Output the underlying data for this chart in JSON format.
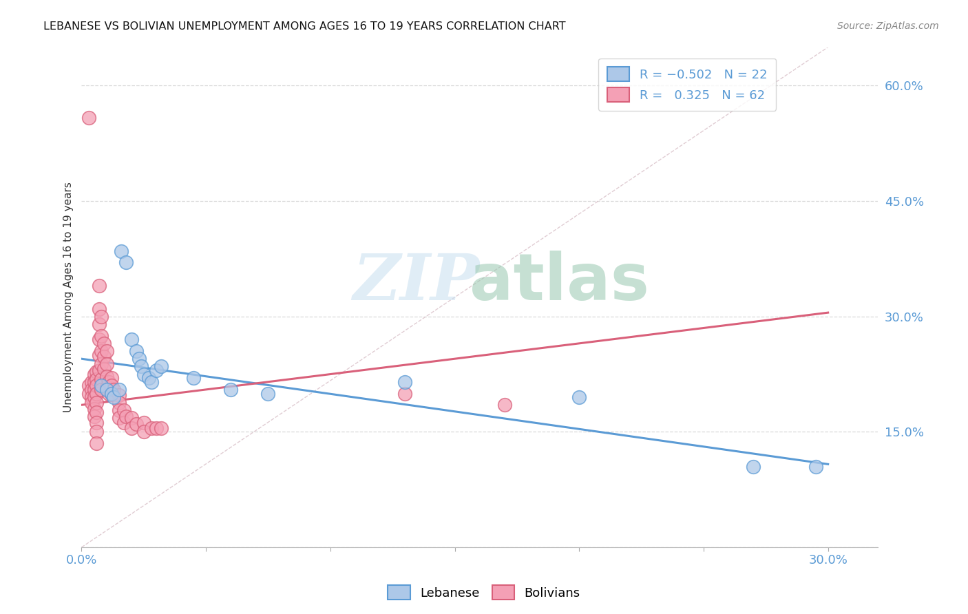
{
  "title": "LEBANESE VS BOLIVIAN UNEMPLOYMENT AMONG AGES 16 TO 19 YEARS CORRELATION CHART",
  "source": "Source: ZipAtlas.com",
  "ylabel": "Unemployment Among Ages 16 to 19 years",
  "xlim": [
    0.0,
    0.32
  ],
  "ylim": [
    0.0,
    0.65
  ],
  "x_ticks": [
    0.0,
    0.05,
    0.1,
    0.15,
    0.2,
    0.25,
    0.3
  ],
  "y_ticks": [
    0.0,
    0.15,
    0.3,
    0.45,
    0.6
  ],
  "lebanese_color": "#adc8e8",
  "bolivian_color": "#f4a0b5",
  "lebanese_line_color": "#5b9bd5",
  "bolivian_line_color": "#d9607a",
  "diag_color": "#d9c0c8",
  "grid_color": "#d8d8d8",
  "leb_line_x0": 0.0,
  "leb_line_y0": 0.245,
  "leb_line_x1": 0.3,
  "leb_line_y1": 0.108,
  "bol_line_x0": 0.0,
  "bol_line_y0": 0.185,
  "bol_line_x1": 0.3,
  "bol_line_y1": 0.305,
  "lebanese_scatter": [
    [
      0.008,
      0.21
    ],
    [
      0.01,
      0.205
    ],
    [
      0.012,
      0.2
    ],
    [
      0.013,
      0.195
    ],
    [
      0.015,
      0.205
    ],
    [
      0.016,
      0.385
    ],
    [
      0.018,
      0.37
    ],
    [
      0.02,
      0.27
    ],
    [
      0.022,
      0.255
    ],
    [
      0.023,
      0.245
    ],
    [
      0.024,
      0.235
    ],
    [
      0.025,
      0.225
    ],
    [
      0.027,
      0.22
    ],
    [
      0.028,
      0.215
    ],
    [
      0.03,
      0.23
    ],
    [
      0.032,
      0.235
    ],
    [
      0.045,
      0.22
    ],
    [
      0.06,
      0.205
    ],
    [
      0.075,
      0.2
    ],
    [
      0.13,
      0.215
    ],
    [
      0.2,
      0.195
    ],
    [
      0.27,
      0.105
    ],
    [
      0.295,
      0.105
    ]
  ],
  "bolivian_scatter": [
    [
      0.003,
      0.21
    ],
    [
      0.003,
      0.2
    ],
    [
      0.004,
      0.215
    ],
    [
      0.004,
      0.205
    ],
    [
      0.004,
      0.195
    ],
    [
      0.004,
      0.188
    ],
    [
      0.005,
      0.225
    ],
    [
      0.005,
      0.215
    ],
    [
      0.005,
      0.205
    ],
    [
      0.005,
      0.195
    ],
    [
      0.005,
      0.18
    ],
    [
      0.005,
      0.17
    ],
    [
      0.006,
      0.228
    ],
    [
      0.006,
      0.218
    ],
    [
      0.006,
      0.21
    ],
    [
      0.006,
      0.2
    ],
    [
      0.006,
      0.188
    ],
    [
      0.006,
      0.175
    ],
    [
      0.006,
      0.162
    ],
    [
      0.006,
      0.15
    ],
    [
      0.006,
      0.135
    ],
    [
      0.007,
      0.34
    ],
    [
      0.007,
      0.31
    ],
    [
      0.007,
      0.29
    ],
    [
      0.007,
      0.27
    ],
    [
      0.007,
      0.25
    ],
    [
      0.007,
      0.23
    ],
    [
      0.008,
      0.3
    ],
    [
      0.008,
      0.275
    ],
    [
      0.008,
      0.255
    ],
    [
      0.008,
      0.238
    ],
    [
      0.008,
      0.218
    ],
    [
      0.008,
      0.205
    ],
    [
      0.009,
      0.265
    ],
    [
      0.009,
      0.248
    ],
    [
      0.009,
      0.232
    ],
    [
      0.01,
      0.255
    ],
    [
      0.01,
      0.238
    ],
    [
      0.01,
      0.222
    ],
    [
      0.01,
      0.208
    ],
    [
      0.011,
      0.215
    ],
    [
      0.011,
      0.2
    ],
    [
      0.012,
      0.22
    ],
    [
      0.012,
      0.21
    ],
    [
      0.012,
      0.2
    ],
    [
      0.013,
      0.205
    ],
    [
      0.015,
      0.198
    ],
    [
      0.015,
      0.188
    ],
    [
      0.015,
      0.178
    ],
    [
      0.015,
      0.168
    ],
    [
      0.017,
      0.178
    ],
    [
      0.017,
      0.162
    ],
    [
      0.018,
      0.17
    ],
    [
      0.02,
      0.168
    ],
    [
      0.02,
      0.155
    ],
    [
      0.022,
      0.16
    ],
    [
      0.025,
      0.162
    ],
    [
      0.025,
      0.15
    ],
    [
      0.028,
      0.155
    ],
    [
      0.03,
      0.155
    ],
    [
      0.032,
      0.155
    ],
    [
      0.003,
      0.558
    ],
    [
      0.13,
      0.2
    ],
    [
      0.17,
      0.185
    ]
  ]
}
